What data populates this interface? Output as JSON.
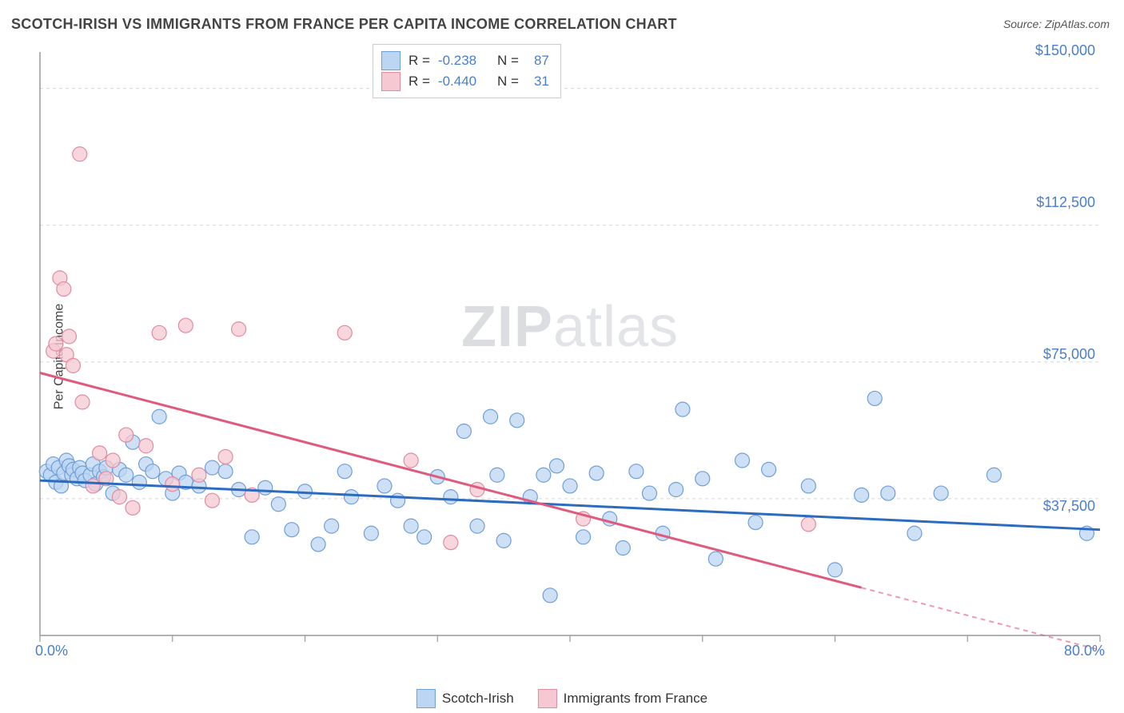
{
  "title": "SCOTCH-IRISH VS IMMIGRANTS FROM FRANCE PER CAPITA INCOME CORRELATION CHART",
  "source_label": "Source: ",
  "source_value": "ZipAtlas.com",
  "watermark_zip": "ZIP",
  "watermark_atlas": "atlas",
  "chart": {
    "type": "scatter",
    "y_axis_title": "Per Capita Income",
    "xlim": [
      0,
      80
    ],
    "ylim": [
      0,
      160000
    ],
    "x_tick_labels": {
      "0": "0.0%",
      "80": "80.0%"
    },
    "x_minor_ticks": [
      0,
      10,
      20,
      30,
      40,
      50,
      60,
      70,
      80
    ],
    "y_tick_labels": {
      "37500": "$37,500",
      "75000": "$75,000",
      "112500": "$112,500",
      "150000": "$150,000"
    },
    "y_grid_values": [
      37500,
      75000,
      112500,
      150000
    ],
    "grid_color": "#d8d8d8",
    "axis_color": "#999999",
    "background_color": "#ffffff",
    "marker_radius": 9,
    "marker_stroke_width": 1.2,
    "line_width": 3,
    "series": [
      {
        "key": "scotch_irish",
        "label": "Scotch-Irish",
        "fill": "#bcd5f2",
        "stroke": "#6f9fd8",
        "line_color": "#2d6bc0",
        "R": "-0.238",
        "N": "87",
        "trend": {
          "x1": 0,
          "y1": 42500,
          "x2": 80,
          "y2": 29000,
          "solid_to_x": 80
        },
        "points": [
          [
            0.5,
            45000
          ],
          [
            0.8,
            44000
          ],
          [
            1.0,
            47000
          ],
          [
            1.2,
            42000
          ],
          [
            1.4,
            46000
          ],
          [
            1.6,
            41000
          ],
          [
            1.8,
            44500
          ],
          [
            2.0,
            48000
          ],
          [
            2.2,
            46500
          ],
          [
            2.4,
            44000
          ],
          [
            2.5,
            45500
          ],
          [
            2.8,
            43000
          ],
          [
            3.0,
            46000
          ],
          [
            3.2,
            44500
          ],
          [
            3.4,
            42500
          ],
          [
            3.8,
            44000
          ],
          [
            4.0,
            47000
          ],
          [
            4.2,
            41500
          ],
          [
            4.5,
            45000
          ],
          [
            4.8,
            43500
          ],
          [
            5.0,
            46000
          ],
          [
            5.5,
            39000
          ],
          [
            6.0,
            45500
          ],
          [
            6.5,
            44000
          ],
          [
            7.0,
            53000
          ],
          [
            7.5,
            42000
          ],
          [
            8.0,
            47000
          ],
          [
            8.5,
            45000
          ],
          [
            9.0,
            60000
          ],
          [
            9.5,
            43000
          ],
          [
            10.0,
            39000
          ],
          [
            10.5,
            44500
          ],
          [
            11.0,
            42000
          ],
          [
            12.0,
            41000
          ],
          [
            13.0,
            46000
          ],
          [
            14.0,
            45000
          ],
          [
            15.0,
            40000
          ],
          [
            16.0,
            27000
          ],
          [
            17.0,
            40500
          ],
          [
            18.0,
            36000
          ],
          [
            19.0,
            29000
          ],
          [
            20.0,
            39500
          ],
          [
            21.0,
            25000
          ],
          [
            22.0,
            30000
          ],
          [
            23.0,
            45000
          ],
          [
            23.5,
            38000
          ],
          [
            25.0,
            28000
          ],
          [
            26.0,
            41000
          ],
          [
            27.0,
            37000
          ],
          [
            28.0,
            30000
          ],
          [
            29.0,
            27000
          ],
          [
            30.0,
            43500
          ],
          [
            31.0,
            38000
          ],
          [
            32.0,
            56000
          ],
          [
            33.0,
            30000
          ],
          [
            34.0,
            60000
          ],
          [
            34.5,
            44000
          ],
          [
            35.0,
            26000
          ],
          [
            36.0,
            59000
          ],
          [
            37.0,
            38000
          ],
          [
            38.0,
            44000
          ],
          [
            38.5,
            11000
          ],
          [
            39.0,
            46500
          ],
          [
            40.0,
            41000
          ],
          [
            41.0,
            27000
          ],
          [
            42.0,
            44500
          ],
          [
            43.0,
            32000
          ],
          [
            44.0,
            24000
          ],
          [
            45.0,
            45000
          ],
          [
            46.0,
            39000
          ],
          [
            47.0,
            28000
          ],
          [
            48.0,
            40000
          ],
          [
            48.5,
            62000
          ],
          [
            50.0,
            43000
          ],
          [
            51.0,
            21000
          ],
          [
            53.0,
            48000
          ],
          [
            54.0,
            31000
          ],
          [
            55.0,
            45500
          ],
          [
            58.0,
            41000
          ],
          [
            60.0,
            18000
          ],
          [
            62.0,
            38500
          ],
          [
            63.0,
            65000
          ],
          [
            64.0,
            39000
          ],
          [
            66.0,
            28000
          ],
          [
            68.0,
            39000
          ],
          [
            79.0,
            28000
          ],
          [
            72.0,
            44000
          ]
        ]
      },
      {
        "key": "france",
        "label": "Immigrants from France",
        "fill": "#f6c8d2",
        "stroke": "#e08ba0",
        "line_color": "#e05a7d",
        "R": "-0.440",
        "N": "31",
        "trend": {
          "x1": 0,
          "y1": 72000,
          "x2": 80,
          "y2": -4000,
          "solid_to_x": 62
        },
        "points": [
          [
            1.0,
            78000
          ],
          [
            1.2,
            80000
          ],
          [
            1.5,
            98000
          ],
          [
            1.8,
            95000
          ],
          [
            2.0,
            77000
          ],
          [
            2.2,
            82000
          ],
          [
            2.5,
            74000
          ],
          [
            3.0,
            132000
          ],
          [
            3.2,
            64000
          ],
          [
            4.0,
            41000
          ],
          [
            4.5,
            50000
          ],
          [
            5.0,
            43000
          ],
          [
            5.5,
            48000
          ],
          [
            6.0,
            38000
          ],
          [
            6.5,
            55000
          ],
          [
            7.0,
            35000
          ],
          [
            8.0,
            52000
          ],
          [
            9.0,
            83000
          ],
          [
            10.0,
            41500
          ],
          [
            11.0,
            85000
          ],
          [
            12.0,
            44000
          ],
          [
            13.0,
            37000
          ],
          [
            14.0,
            49000
          ],
          [
            15.0,
            84000
          ],
          [
            16.0,
            38500
          ],
          [
            23.0,
            83000
          ],
          [
            28.0,
            48000
          ],
          [
            31.0,
            25500
          ],
          [
            33.0,
            40000
          ],
          [
            41.0,
            32000
          ],
          [
            58.0,
            30500
          ]
        ]
      }
    ]
  },
  "stats_legend": {
    "rows": [
      {
        "swatch": "#bcd5f2",
        "border": "#6f9fd8",
        "R_label": "R =",
        "R": "-0.238",
        "N_label": "N =",
        "N": "87"
      },
      {
        "swatch": "#f6c8d2",
        "border": "#e08ba0",
        "R_label": "R =",
        "R": "-0.440",
        "N_label": "N =",
        "N": "31"
      }
    ]
  },
  "bottom_legend": [
    {
      "swatch": "#bcd5f2",
      "border": "#6f9fd8",
      "label": "Scotch-Irish"
    },
    {
      "swatch": "#f6c8d2",
      "border": "#e08ba0",
      "label": "Immigrants from France"
    }
  ]
}
